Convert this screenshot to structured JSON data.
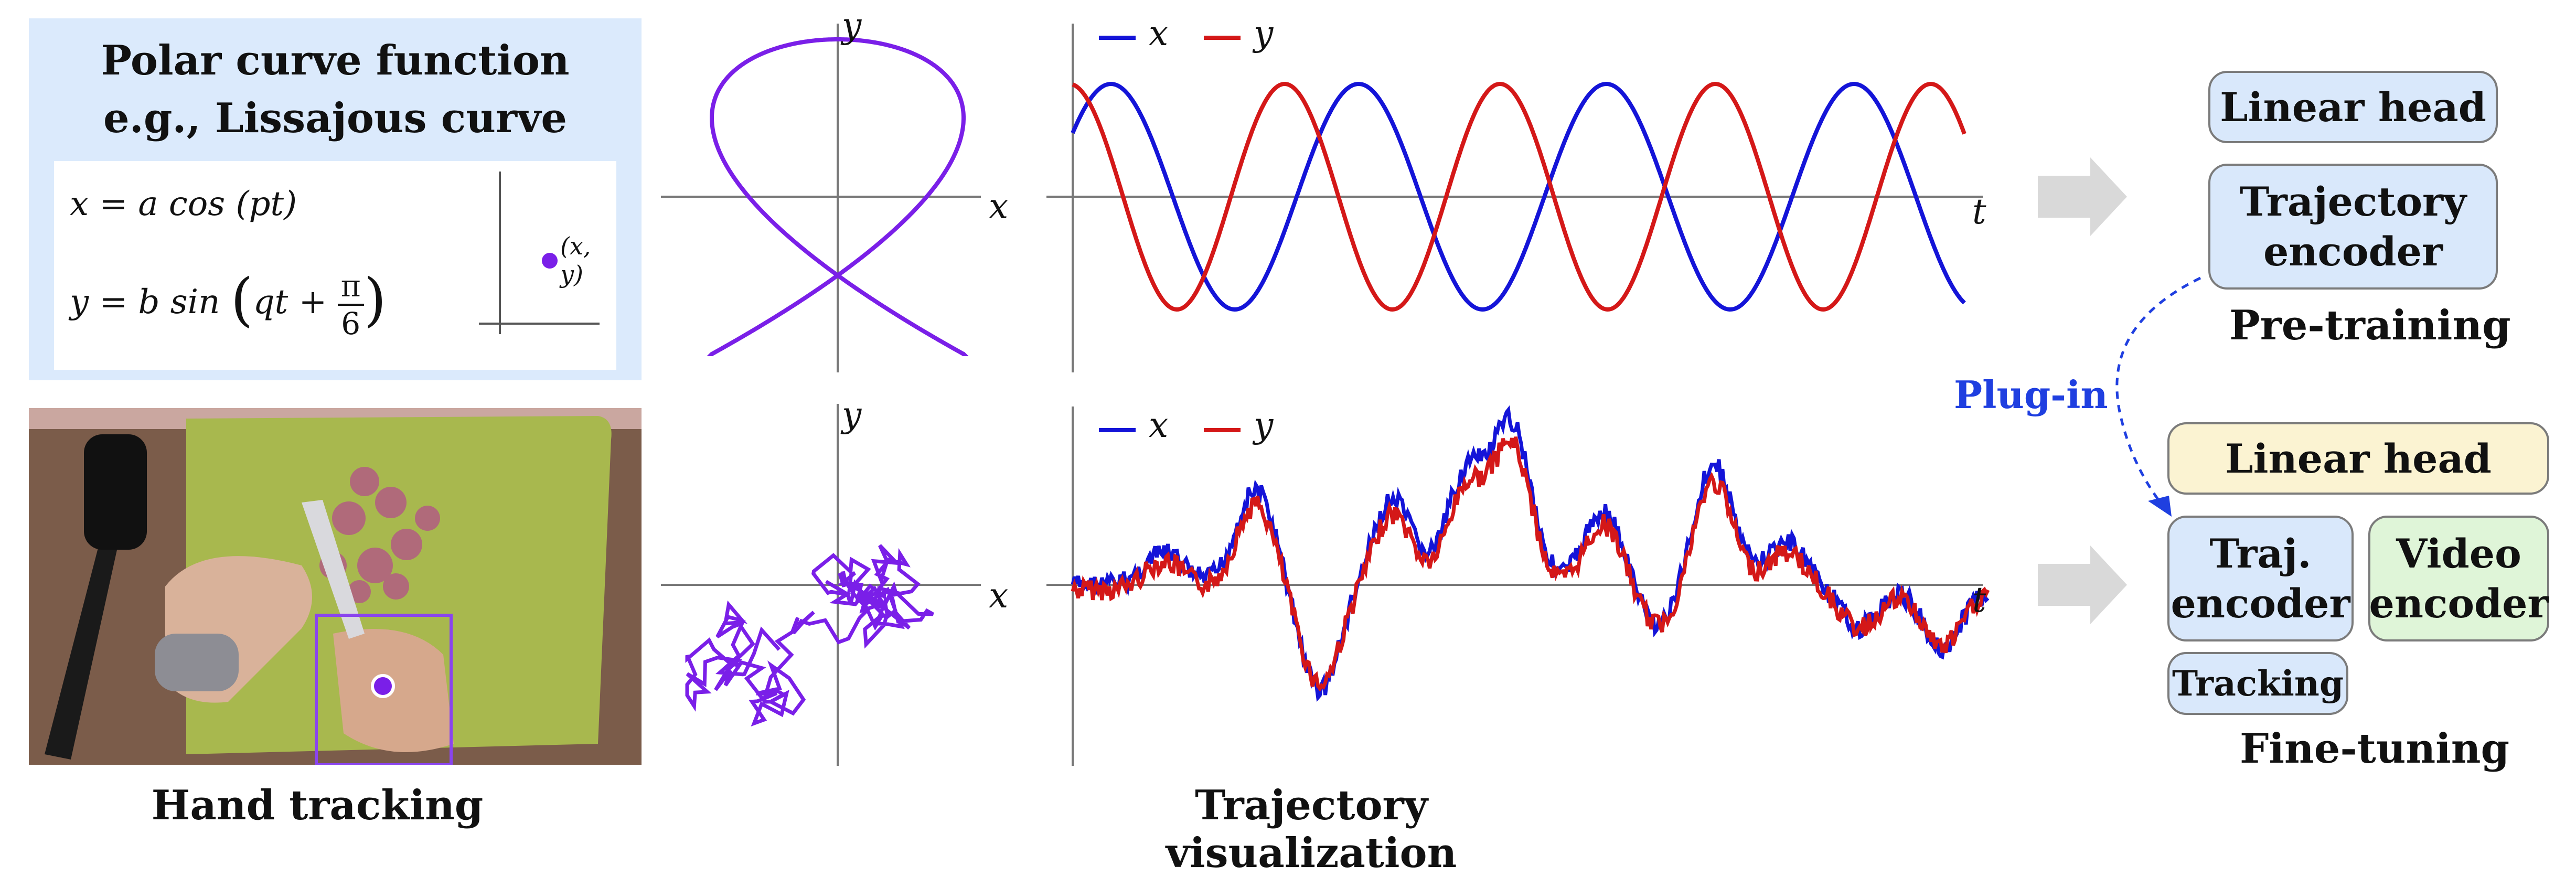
{
  "colors": {
    "x_series": "#1414d8",
    "y_series": "#d41818",
    "trajectory": "#7a1fe8",
    "panel_bg": "#dbeafc",
    "plugin": "#1f3fe0",
    "box_blue": "#d9e8fb",
    "box_cream": "#fbf3d2",
    "box_green": "#dff5d8"
  },
  "formula_panel": {
    "title_line1": "Polar curve function",
    "title_line2": "e.g., Lissajous curve",
    "eq_x": "x = a cos (pt)",
    "eq_y_prefix": "y = b sin",
    "eq_y_arg": "qt + ",
    "frac_num": "π",
    "frac_den": "6",
    "point_label": "(x, y)"
  },
  "captions": {
    "left": "Hand tracking",
    "middle": "Trajectory visualization"
  },
  "plots": {
    "top": {
      "legend": [
        "x",
        "y"
      ],
      "axis_x": "x",
      "axis_y": "y",
      "axis_t": "t"
    },
    "bottom": {
      "legend": [
        "x",
        "y"
      ],
      "axis_x": "x",
      "axis_y": "y",
      "axis_t": "t"
    }
  },
  "pretraining": {
    "linear_head": "Linear head",
    "trajectory_encoder_l1": "Trajectory",
    "trajectory_encoder_l2": "encoder",
    "label": "Pre-training"
  },
  "plugin": "Plug-in",
  "finetuning": {
    "linear_head": "Linear head",
    "traj_encoder_l1": "Traj.",
    "traj_encoder_l2": "encoder",
    "video_encoder_l1": "Video",
    "video_encoder_l2": "encoder",
    "tracking": "Tracking",
    "label": "Fine-tuning"
  }
}
